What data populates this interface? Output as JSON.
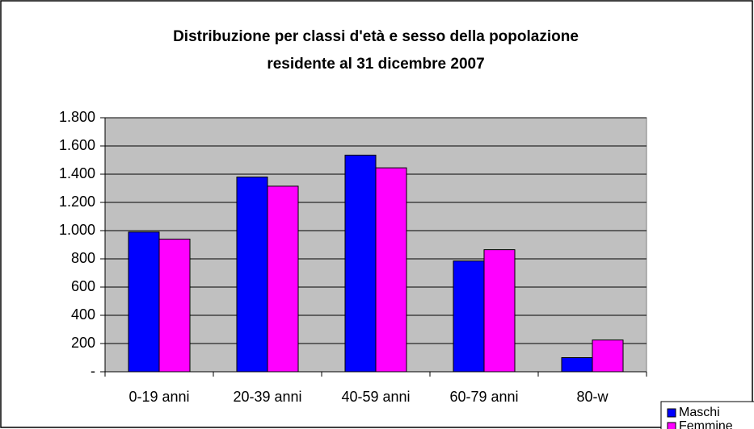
{
  "chart_data": {
    "type": "bar",
    "title": [
      "Distribuzione per classi d'età e sesso della popolazione",
      "residente al 31 dicembre 2007"
    ],
    "categories": [
      "0-19 anni",
      "20-39 anni",
      "40-59 anni",
      "60-79 anni",
      "80-w"
    ],
    "series": [
      {
        "name": "Maschi",
        "color": "#0000ff",
        "values": [
          990,
          1380,
          1535,
          785,
          100
        ]
      },
      {
        "name": "Femmine",
        "color": "#ff00ff",
        "values": [
          940,
          1315,
          1445,
          865,
          225
        ]
      }
    ],
    "ylim": [
      0,
      1800
    ],
    "yticks": [
      {
        "value": 0,
        "label": "-"
      },
      200,
      400,
      600,
      800,
      {
        "value": 1000,
        "label": "1.000"
      },
      {
        "value": 1200,
        "label": "1.200"
      },
      {
        "value": 1400,
        "label": "1.400"
      },
      {
        "value": 1600,
        "label": "1.600"
      },
      {
        "value": 1800,
        "label": "1.800"
      }
    ],
    "grid": true,
    "legend": "bottom-right",
    "plot_background": "#c0c0c0"
  }
}
